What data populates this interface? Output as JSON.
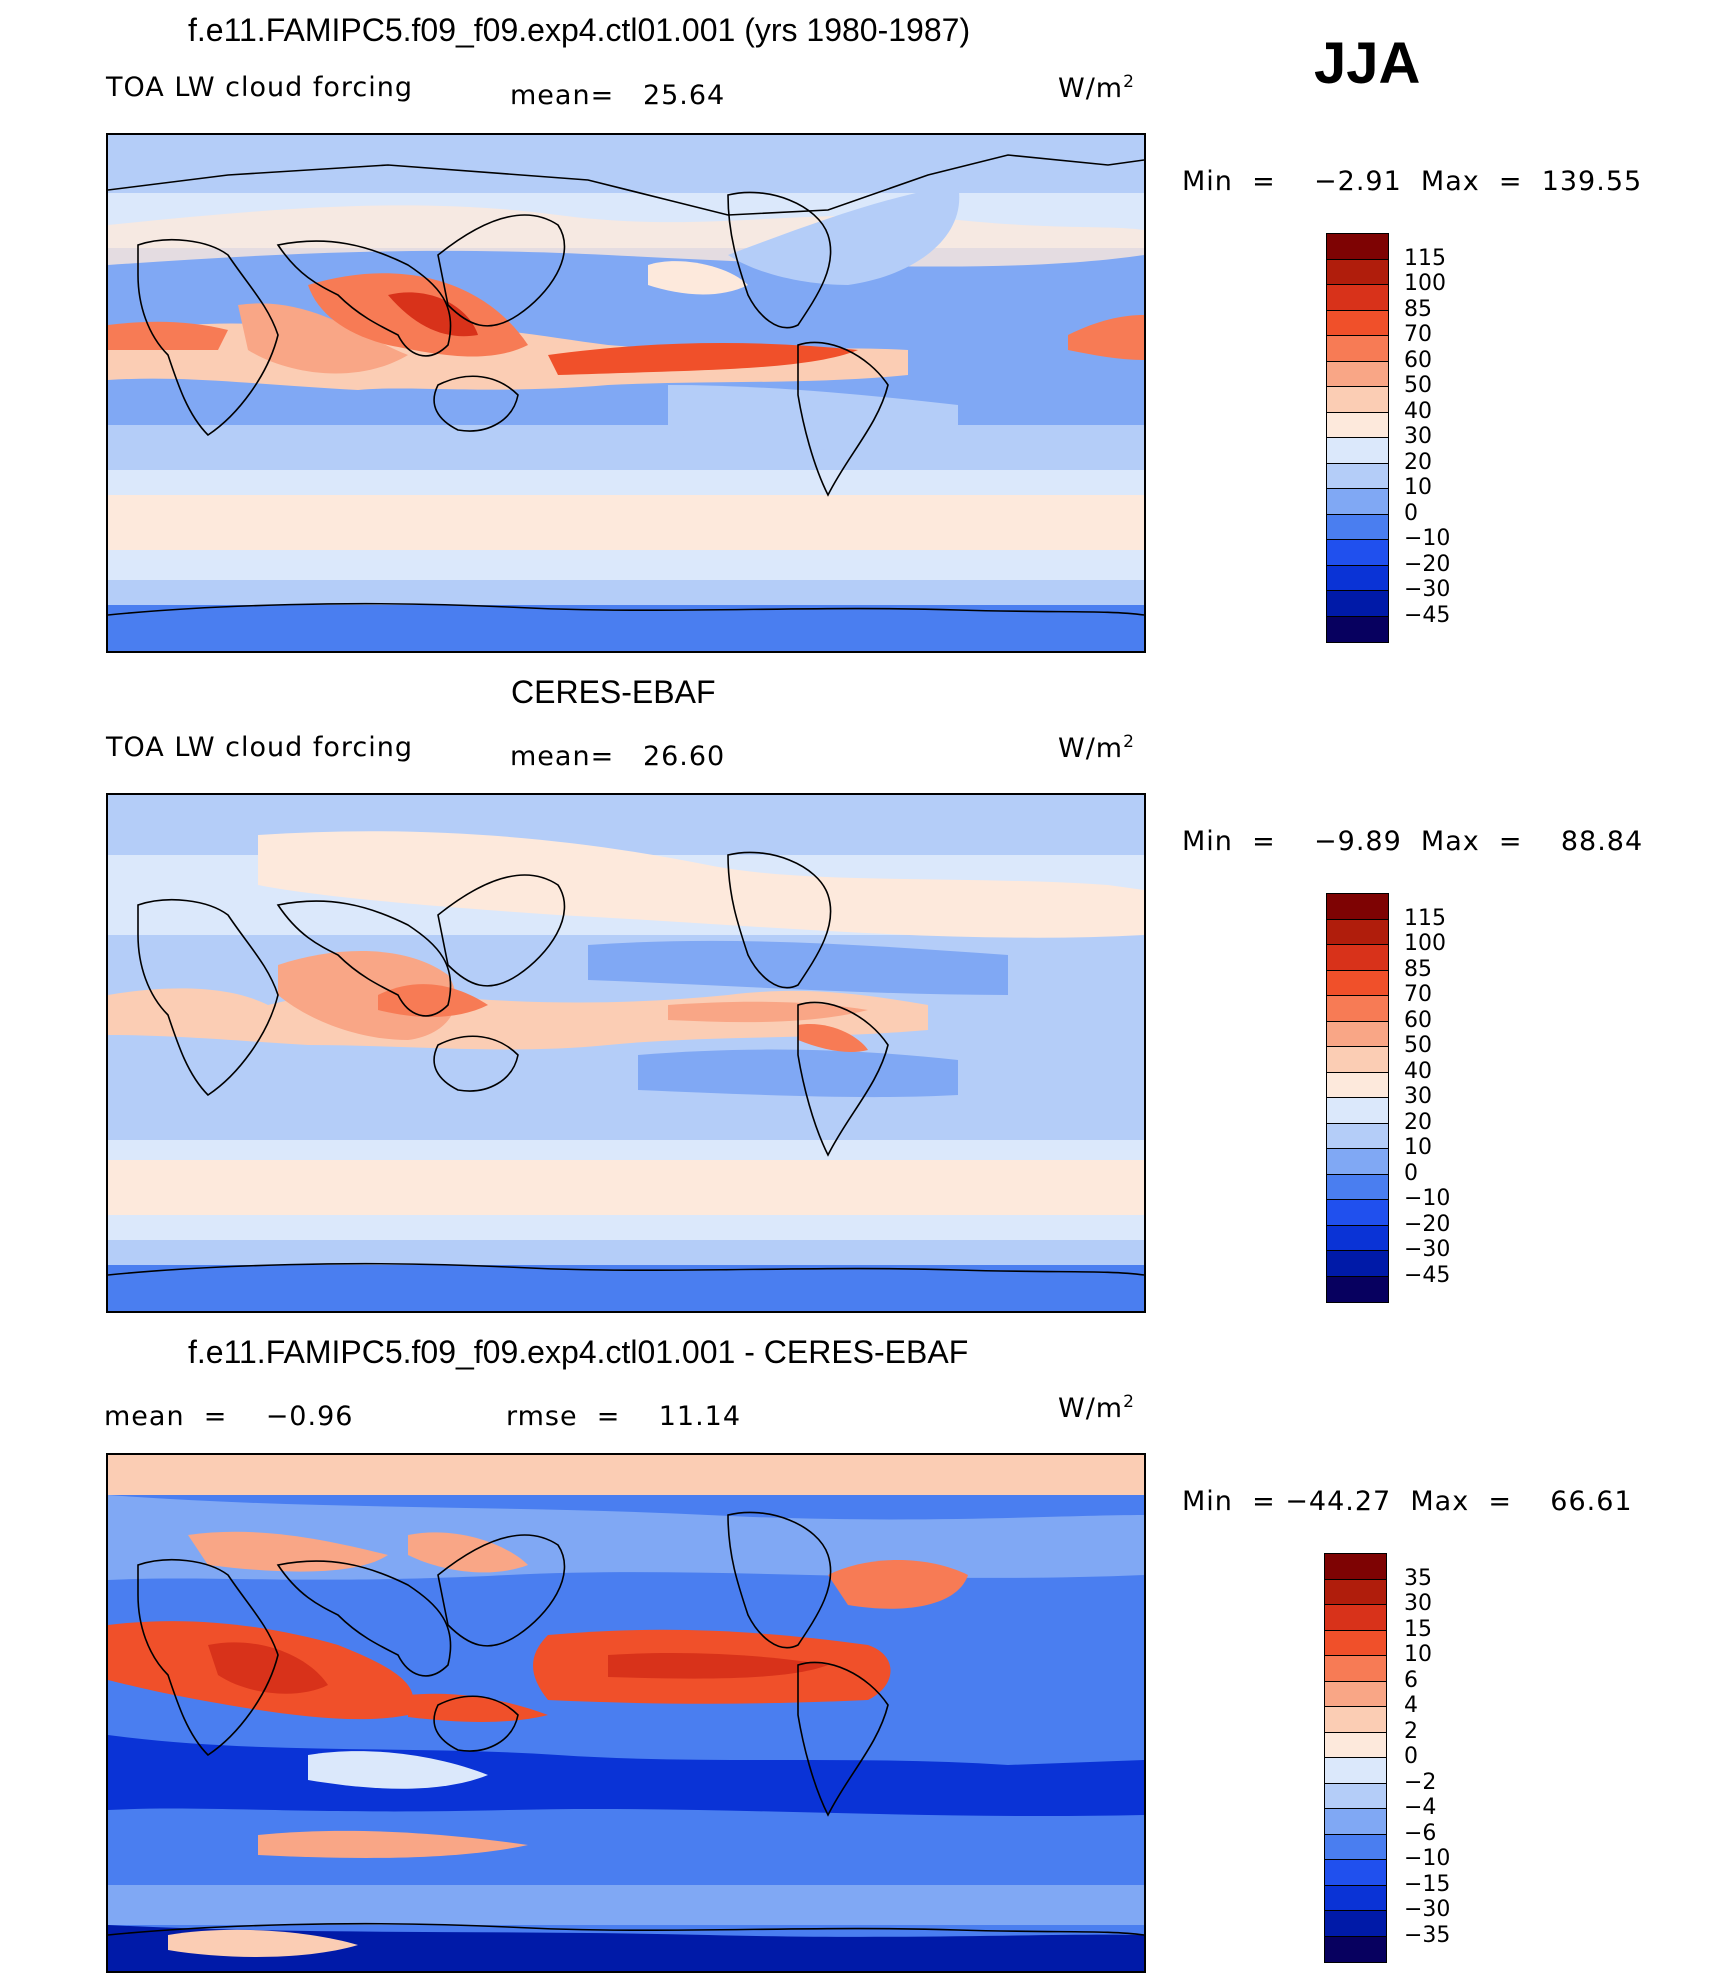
{
  "season": "JJA",
  "colors": {
    "full": [
      "#07005f",
      "#001aa8",
      "#0a33d6",
      "#2050ee",
      "#4a7ef0",
      "#80a8f4",
      "#b4cdf8",
      "#dbe8fb",
      "#fde9dc",
      "#fbcdb4",
      "#f9a686",
      "#f77b55",
      "#f0502a",
      "#d8321a",
      "#b01d0c",
      "#7e0303"
    ],
    "diff": [
      "#07005f",
      "#001aa8",
      "#0a33d6",
      "#2050ee",
      "#4a7ef0",
      "#80a8f4",
      "#b4cdf8",
      "#dbe8fb",
      "#fde9dc",
      "#fbcdb4",
      "#f9a686",
      "#f77b55",
      "#f0502a",
      "#d8321a",
      "#b01d0c",
      "#7e0303"
    ]
  },
  "panel1": {
    "title": "f.e11.FAMIPC5.f09_f09.exp4.ctl01.001 (yrs 1980-1987)",
    "left": "TOA LW cloud forcing",
    "mean": "mean=   25.64",
    "units": "W/m",
    "sup": "2",
    "minmax": "Min  =    −2.91  Max  =  139.55",
    "ticks": [
      "115",
      "100",
      "85",
      "70",
      "60",
      "50",
      "40",
      "30",
      "20",
      "10",
      "0",
      "−10",
      "−20",
      "−30",
      "−45"
    ]
  },
  "panel2": {
    "title": "CERES-EBAF",
    "left": "TOA LW cloud forcing",
    "mean": "mean=   26.60",
    "units": "W/m",
    "sup": "2",
    "minmax": "Min  =    −9.89  Max  =    88.84",
    "ticks": [
      "115",
      "100",
      "85",
      "70",
      "60",
      "50",
      "40",
      "30",
      "20",
      "10",
      "0",
      "−10",
      "−20",
      "−30",
      "−45"
    ]
  },
  "panel3": {
    "title": "f.e11.FAMIPC5.f09_f09.exp4.ctl01.001 - CERES-EBAF",
    "left": "mean  =    −0.96",
    "mean": "rmse  =    11.14",
    "units": "W/m",
    "sup": "2",
    "minmax": "Min  = −44.27  Max  =    66.61",
    "ticks": [
      "35",
      "30",
      "15",
      "10",
      "6",
      "4",
      "2",
      "0",
      "−2",
      "−4",
      "−6",
      "−10",
      "−15",
      "−30",
      "−35"
    ]
  }
}
